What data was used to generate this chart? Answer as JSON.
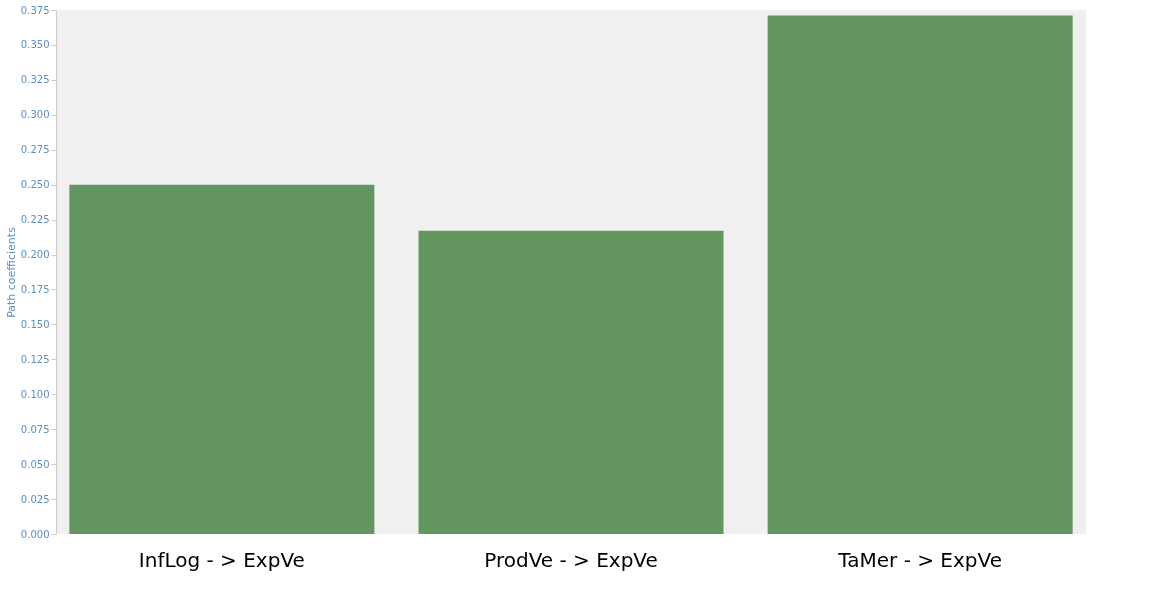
{
  "chart_data": {
    "type": "bar",
    "ylabel": "Path coefficients",
    "categories": [
      "InfLog - > ExpVe",
      "ProdVe - > ExpVe",
      "TaMer - > ExpVe"
    ],
    "values": [
      0.25,
      0.217,
      0.371
    ],
    "color": "#64965f",
    "ylim": [
      0,
      0.375
    ],
    "yticks": [
      {
        "value": 0,
        "label": "0.000"
      },
      {
        "value": 0.025,
        "label": "0.025"
      },
      {
        "value": 0.05,
        "label": "0.050"
      },
      {
        "value": 0.075,
        "label": "0.075"
      },
      {
        "value": 0.1,
        "label": "0.100"
      },
      {
        "value": 0.125,
        "label": "0.125"
      },
      {
        "value": 0.15,
        "label": "0.150"
      },
      {
        "value": 0.175,
        "label": "0.175"
      },
      {
        "value": 0.2,
        "label": "0.200"
      },
      {
        "value": 0.225,
        "label": "0.225"
      },
      {
        "value": 0.25,
        "label": "0.250"
      },
      {
        "value": 0.275,
        "label": "0.275"
      },
      {
        "value": 0.3,
        "label": "0.300"
      },
      {
        "value": 0.325,
        "label": "0.325"
      },
      {
        "value": 0.35,
        "label": "0.350"
      },
      {
        "value": 0.375,
        "label": "0.375"
      }
    ],
    "grid": false
  }
}
